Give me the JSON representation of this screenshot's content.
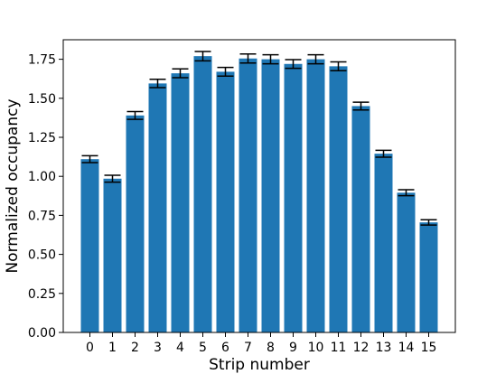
{
  "chart_data": {
    "type": "bar",
    "title": "",
    "xlabel": "Strip number",
    "ylabel": "Normalized occupancy",
    "categories": [
      "0",
      "1",
      "2",
      "3",
      "4",
      "5",
      "6",
      "7",
      "8",
      "9",
      "10",
      "11",
      "12",
      "13",
      "14",
      "15"
    ],
    "values": [
      1.11,
      0.985,
      1.39,
      1.595,
      1.66,
      1.77,
      1.67,
      1.755,
      1.75,
      1.72,
      1.75,
      1.705,
      1.45,
      1.145,
      0.895,
      0.705
    ],
    "errors": [
      0.022,
      0.022,
      0.025,
      0.027,
      0.028,
      0.03,
      0.028,
      0.029,
      0.029,
      0.028,
      0.029,
      0.028,
      0.025,
      0.022,
      0.019,
      0.017
    ],
    "ylim": [
      0.0,
      1.875
    ],
    "yticks": [
      "0.00",
      "0.25",
      "0.50",
      "0.75",
      "1.00",
      "1.25",
      "1.50",
      "1.75"
    ],
    "ytick_values": [
      0.0,
      0.25,
      0.5,
      0.75,
      1.0,
      1.25,
      1.5,
      1.75
    ],
    "grid": false,
    "bar_color": "#1f77b4",
    "error_color": "#000000"
  }
}
